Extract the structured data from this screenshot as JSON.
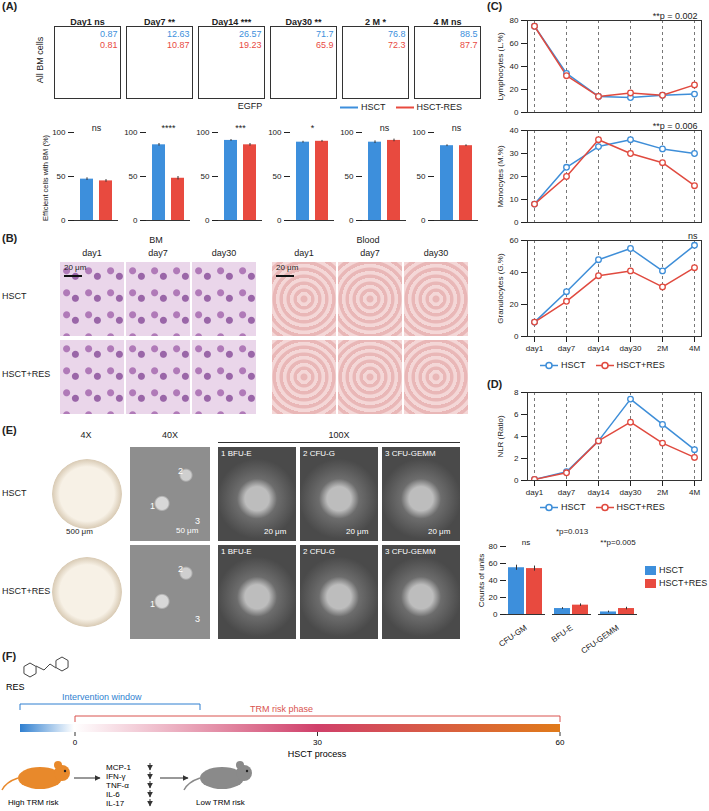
{
  "figure_labels": {
    "A": "(A)",
    "B": "(B)",
    "C": "(C)",
    "D": "(D)",
    "E": "(E)",
    "F": "(F)"
  },
  "panel_A_flow": {
    "ylabel": "All BM cells",
    "xlabel": "EGFP",
    "legend": [
      {
        "name": "HSCT",
        "color": "#3d8fdc"
      },
      {
        "name": "HSCT-RES",
        "color": "#e84a3f"
      }
    ],
    "panels": [
      {
        "title": "Day1",
        "significance": "ns",
        "values": [
          0.87,
          0.81
        ]
      },
      {
        "title": "Day7",
        "significance": "**",
        "values": [
          12.63,
          10.87
        ]
      },
      {
        "title": "Day14",
        "significance": "***",
        "values": [
          26.57,
          19.23
        ]
      },
      {
        "title": "Day30",
        "significance": "**",
        "values": [
          71.7,
          65.9
        ]
      },
      {
        "title": "2 M",
        "significance": "*",
        "values": [
          76.8,
          72.3
        ]
      },
      {
        "title": "4 M",
        "significance": "ns",
        "values": [
          88.5,
          87.7
        ]
      }
    ]
  },
  "panel_B_images": {
    "columns": [
      "BM",
      "Blood"
    ],
    "days": [
      "day1",
      "day7",
      "day30"
    ],
    "rows": [
      "HSCT",
      "HSCT+RES"
    ],
    "scale_bar": "20 μm"
  },
  "panel_E_images": {
    "magnifications": [
      "4X",
      "40X",
      "100X"
    ],
    "rows": [
      "HSCT",
      "HSCT+RES"
    ],
    "scale_bars": [
      "500 μm",
      "50 μm",
      "20 μm"
    ],
    "region_numbers": [
      "1",
      "2",
      "3"
    ],
    "colony_types": [
      "1 BFU-E",
      "2 CFU-G",
      "3 CFU-GEMM"
    ]
  },
  "panel_F_diagram": {
    "compound": "RES",
    "intervention": "Intervention window",
    "risk_phase": "TRM risk phase",
    "timeline_ticks": [
      0,
      30,
      60
    ],
    "timeline_label": "HSCT process",
    "cytokines": [
      "MCP-1",
      "IFN-γ",
      "TNF-α",
      "IL-6",
      "IL-17"
    ],
    "start_state": "High TRM risk",
    "end_state": "Low TRM risk"
  },
  "chart_data": [
    {
      "type": "bar",
      "ylabel": "Efficient cells with BM (%)",
      "categories": [
        null,
        null
      ],
      "values": [
        47,
        45
      ],
      "errors": [
        1.5,
        1.5
      ],
      "colors": [
        "#3d8fdc",
        "#e84a3f"
      ],
      "ylim": [
        0,
        100
      ],
      "yticks": [
        0,
        50,
        100
      ],
      "tick_labels": "y",
      "annotation": "ns"
    },
    {
      "type": "bar",
      "categories": [
        null,
        null
      ],
      "values": [
        86,
        48
      ],
      "errors": [
        1.5,
        2
      ],
      "colors": [
        "#3d8fdc",
        "#e84a3f"
      ],
      "ylim": [
        0,
        100
      ],
      "yticks": [
        0,
        50,
        100
      ],
      "tick_labels": "y",
      "annotation": "****"
    },
    {
      "type": "bar",
      "categories": [
        null,
        null
      ],
      "values": [
        91,
        86
      ],
      "errors": [
        1,
        1.5
      ],
      "colors": [
        "#3d8fdc",
        "#e84a3f"
      ],
      "ylim": [
        0,
        100
      ],
      "yticks": [
        0,
        50,
        100
      ],
      "tick_labels": "y",
      "annotation": "***"
    },
    {
      "type": "bar",
      "categories": [
        null,
        null
      ],
      "values": [
        89,
        90
      ],
      "errors": [
        1,
        1
      ],
      "colors": [
        "#3d8fdc",
        "#e84a3f"
      ],
      "ylim": [
        0,
        100
      ],
      "yticks": [
        0,
        50,
        100
      ],
      "tick_labels": "y",
      "annotation": "*"
    },
    {
      "type": "bar",
      "categories": [
        null,
        null
      ],
      "values": [
        89,
        91
      ],
      "errors": [
        1.5,
        1.5
      ],
      "colors": [
        "#3d8fdc",
        "#e84a3f"
      ],
      "ylim": [
        0,
        100
      ],
      "yticks": [
        0,
        50,
        100
      ],
      "tick_labels": "y",
      "annotation": "ns"
    },
    {
      "type": "bar",
      "categories": [
        null,
        null
      ],
      "values": [
        85,
        85
      ],
      "errors": [
        1,
        1
      ],
      "colors": [
        "#3d8fdc",
        "#e84a3f"
      ],
      "ylim": [
        0,
        100
      ],
      "yticks": [
        0,
        50,
        100
      ],
      "tick_labels": "y",
      "annotation": "ns"
    },
    {
      "type": "line",
      "ylabel": "Lymphocytes (L.%)",
      "categories": [
        "day1",
        "day7",
        "day14",
        "day30",
        "2M",
        "4M"
      ],
      "series": [
        {
          "name": "HSCT",
          "color": "#3e8ed8",
          "marker": "circle",
          "values": [
            75,
            34,
            14,
            13,
            15,
            16
          ]
        },
        {
          "name": "HSCT+RES",
          "color": "#e04a3f",
          "marker": "circle",
          "values": [
            75,
            32,
            14,
            17,
            15,
            24
          ]
        }
      ],
      "ylim": [
        0,
        80
      ],
      "yticks": [
        0,
        20,
        40,
        60,
        80
      ],
      "grid": true,
      "tick_labels": "y",
      "annotation": "**p = 0.002"
    },
    {
      "type": "line",
      "ylabel": "Monocytes (M.%)",
      "categories": [
        "day1",
        "day7",
        "day14",
        "day30",
        "2M",
        "4M"
      ],
      "series": [
        {
          "name": "HSCT",
          "color": "#3e8ed8",
          "marker": "circle",
          "values": [
            8,
            24,
            33,
            36,
            32,
            30
          ]
        },
        {
          "name": "HSCT+RES",
          "color": "#e04a3f",
          "marker": "circle",
          "values": [
            8,
            20,
            36,
            30,
            26,
            16
          ]
        }
      ],
      "ylim": [
        0,
        40
      ],
      "yticks": [
        0,
        10,
        20,
        30,
        40
      ],
      "grid": true,
      "tick_labels": "y",
      "annotation": "**p = 0.006"
    },
    {
      "type": "line",
      "ylabel": "Granulocytes (G.%)",
      "categories": [
        "day1",
        "day7",
        "day14",
        "day30",
        "2M",
        "4M"
      ],
      "series": [
        {
          "name": "HSCT",
          "color": "#3e8ed8",
          "marker": "circle",
          "values": [
            9,
            28,
            48,
            55,
            41,
            57
          ]
        },
        {
          "name": "HSCT+RES",
          "color": "#e04a3f",
          "marker": "circle",
          "values": [
            9,
            22,
            38,
            41,
            31,
            43
          ]
        }
      ],
      "ylim": [
        0,
        60
      ],
      "yticks": [
        0,
        20,
        40,
        60
      ],
      "grid": true,
      "annotation": "ns",
      "legend": "bottom"
    },
    {
      "type": "line",
      "ylabel": "NLR (Ratio)",
      "categories": [
        "day1",
        "day7",
        "day14",
        "day30",
        "2M",
        "4M"
      ],
      "series": [
        {
          "name": "HSCT",
          "color": "#3e8ed8",
          "marker": "circle",
          "values": [
            0.1,
            0.8,
            3.6,
            7.4,
            5.1,
            2.8
          ]
        },
        {
          "name": "HSCT+RES",
          "color": "#e04a3f",
          "marker": "circle",
          "values": [
            0.1,
            0.7,
            3.6,
            5.3,
            3.4,
            2.1
          ]
        }
      ],
      "ylim": [
        0,
        8
      ],
      "yticks": [
        0,
        2,
        4,
        6,
        8
      ],
      "grid": true,
      "legend": "bottom"
    },
    {
      "type": "bar",
      "ylabel": "Counts of units",
      "categories": [
        "CFU-GM",
        "BFU-E",
        "CFU-GEMM"
      ],
      "series": [
        {
          "name": "HSCT",
          "color": "#3d8fdc",
          "values": [
            55,
            7,
            3
          ],
          "errors": [
            3,
            1,
            1
          ]
        },
        {
          "name": "HSCT+RES",
          "color": "#e84a3f",
          "values": [
            54,
            11,
            7
          ],
          "errors": [
            3,
            1.5,
            1.5
          ]
        }
      ],
      "ylim": [
        0,
        80
      ],
      "yticks": [
        0,
        20,
        40,
        60,
        80
      ],
      "annotations": [
        "ns",
        "*p=0.013",
        "**p=0.005"
      ],
      "legend": "right"
    }
  ]
}
